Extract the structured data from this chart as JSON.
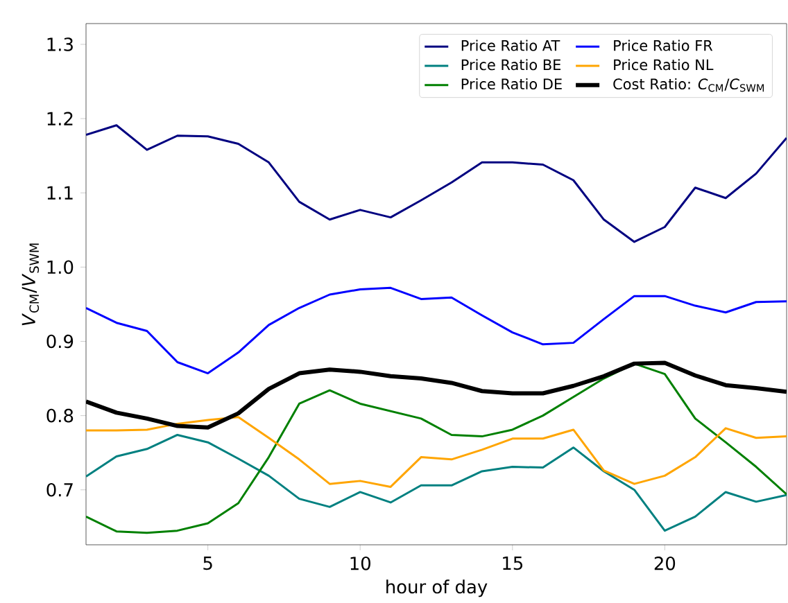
{
  "chart_data": {
    "type": "line",
    "xlabel": "hour of day",
    "ylabel": "*V*$_{CM}$/*V*$_{SWM}$",
    "x": [
      1,
      2,
      3,
      4,
      5,
      6,
      7,
      8,
      9,
      10,
      11,
      12,
      13,
      14,
      15,
      16,
      17,
      18,
      19,
      20,
      21,
      22,
      23,
      24
    ],
    "xlim": [
      1,
      24
    ],
    "ylim": [
      0.626,
      1.328
    ],
    "xticks": [
      5,
      10,
      15,
      20
    ],
    "yticks": [
      0.7,
      0.8,
      0.9,
      {
        "value": 1.0,
        "label": "1.0"
      },
      1.1,
      1.2,
      1.3
    ],
    "grid": false,
    "legend": "top right",
    "line_style": "solid",
    "marker": "none",
    "series": [
      {
        "name": "Price Ratio AT",
        "color": "#000080",
        "values": [
          1.178,
          1.191,
          1.158,
          1.177,
          1.176,
          1.166,
          1.141,
          1.088,
          1.064,
          1.077,
          1.067,
          1.09,
          1.114,
          1.141,
          1.141,
          1.138,
          1.117,
          1.064,
          1.034,
          1.054,
          1.107,
          1.093,
          1.126,
          1.174
        ]
      },
      {
        "name": "Price Ratio BE",
        "color": "#008080",
        "values": [
          0.718,
          0.745,
          0.755,
          0.774,
          0.764,
          0.742,
          0.719,
          0.688,
          0.677,
          0.697,
          0.683,
          0.706,
          0.706,
          0.725,
          0.731,
          0.73,
          0.757,
          0.725,
          0.7,
          0.645,
          0.664,
          0.697,
          0.684,
          0.693
        ]
      },
      {
        "name": "Price Ratio DE",
        "color": "#008000",
        "values": [
          0.664,
          0.644,
          0.642,
          0.645,
          0.655,
          0.682,
          0.744,
          0.816,
          0.834,
          0.816,
          0.806,
          0.796,
          0.774,
          0.772,
          0.781,
          0.8,
          0.825,
          0.85,
          0.87,
          0.856,
          0.796,
          0.764,
          0.731,
          0.694
        ]
      },
      {
        "name": "Price Ratio FR",
        "color": "#0000ff",
        "values": [
          0.945,
          0.925,
          0.914,
          0.872,
          0.857,
          0.885,
          0.922,
          0.945,
          0.963,
          0.97,
          0.972,
          0.957,
          0.959,
          0.935,
          0.912,
          0.896,
          0.898,
          0.93,
          0.961,
          0.961,
          0.948,
          0.939,
          0.953,
          0.954
        ]
      },
      {
        "name": "Price Ratio NL",
        "color": "#ffa500",
        "values": [
          0.78,
          0.78,
          0.781,
          0.789,
          0.794,
          0.798,
          0.77,
          0.741,
          0.708,
          0.712,
          0.704,
          0.744,
          0.741,
          0.754,
          0.769,
          0.769,
          0.781,
          0.726,
          0.708,
          0.719,
          0.744,
          0.783,
          0.77,
          0.772
        ]
      },
      {
        "name": "Cost Ratio: *C*$_{CM}$/*C*$_{SWM}$",
        "color": "#000000",
        "values": [
          0.819,
          0.804,
          0.796,
          0.786,
          0.784,
          0.803,
          0.836,
          0.857,
          0.862,
          0.859,
          0.853,
          0.85,
          0.844,
          0.833,
          0.83,
          0.83,
          0.84,
          0.853,
          0.87,
          0.871,
          0.854,
          0.841,
          0.837,
          0.832
        ]
      }
    ]
  }
}
